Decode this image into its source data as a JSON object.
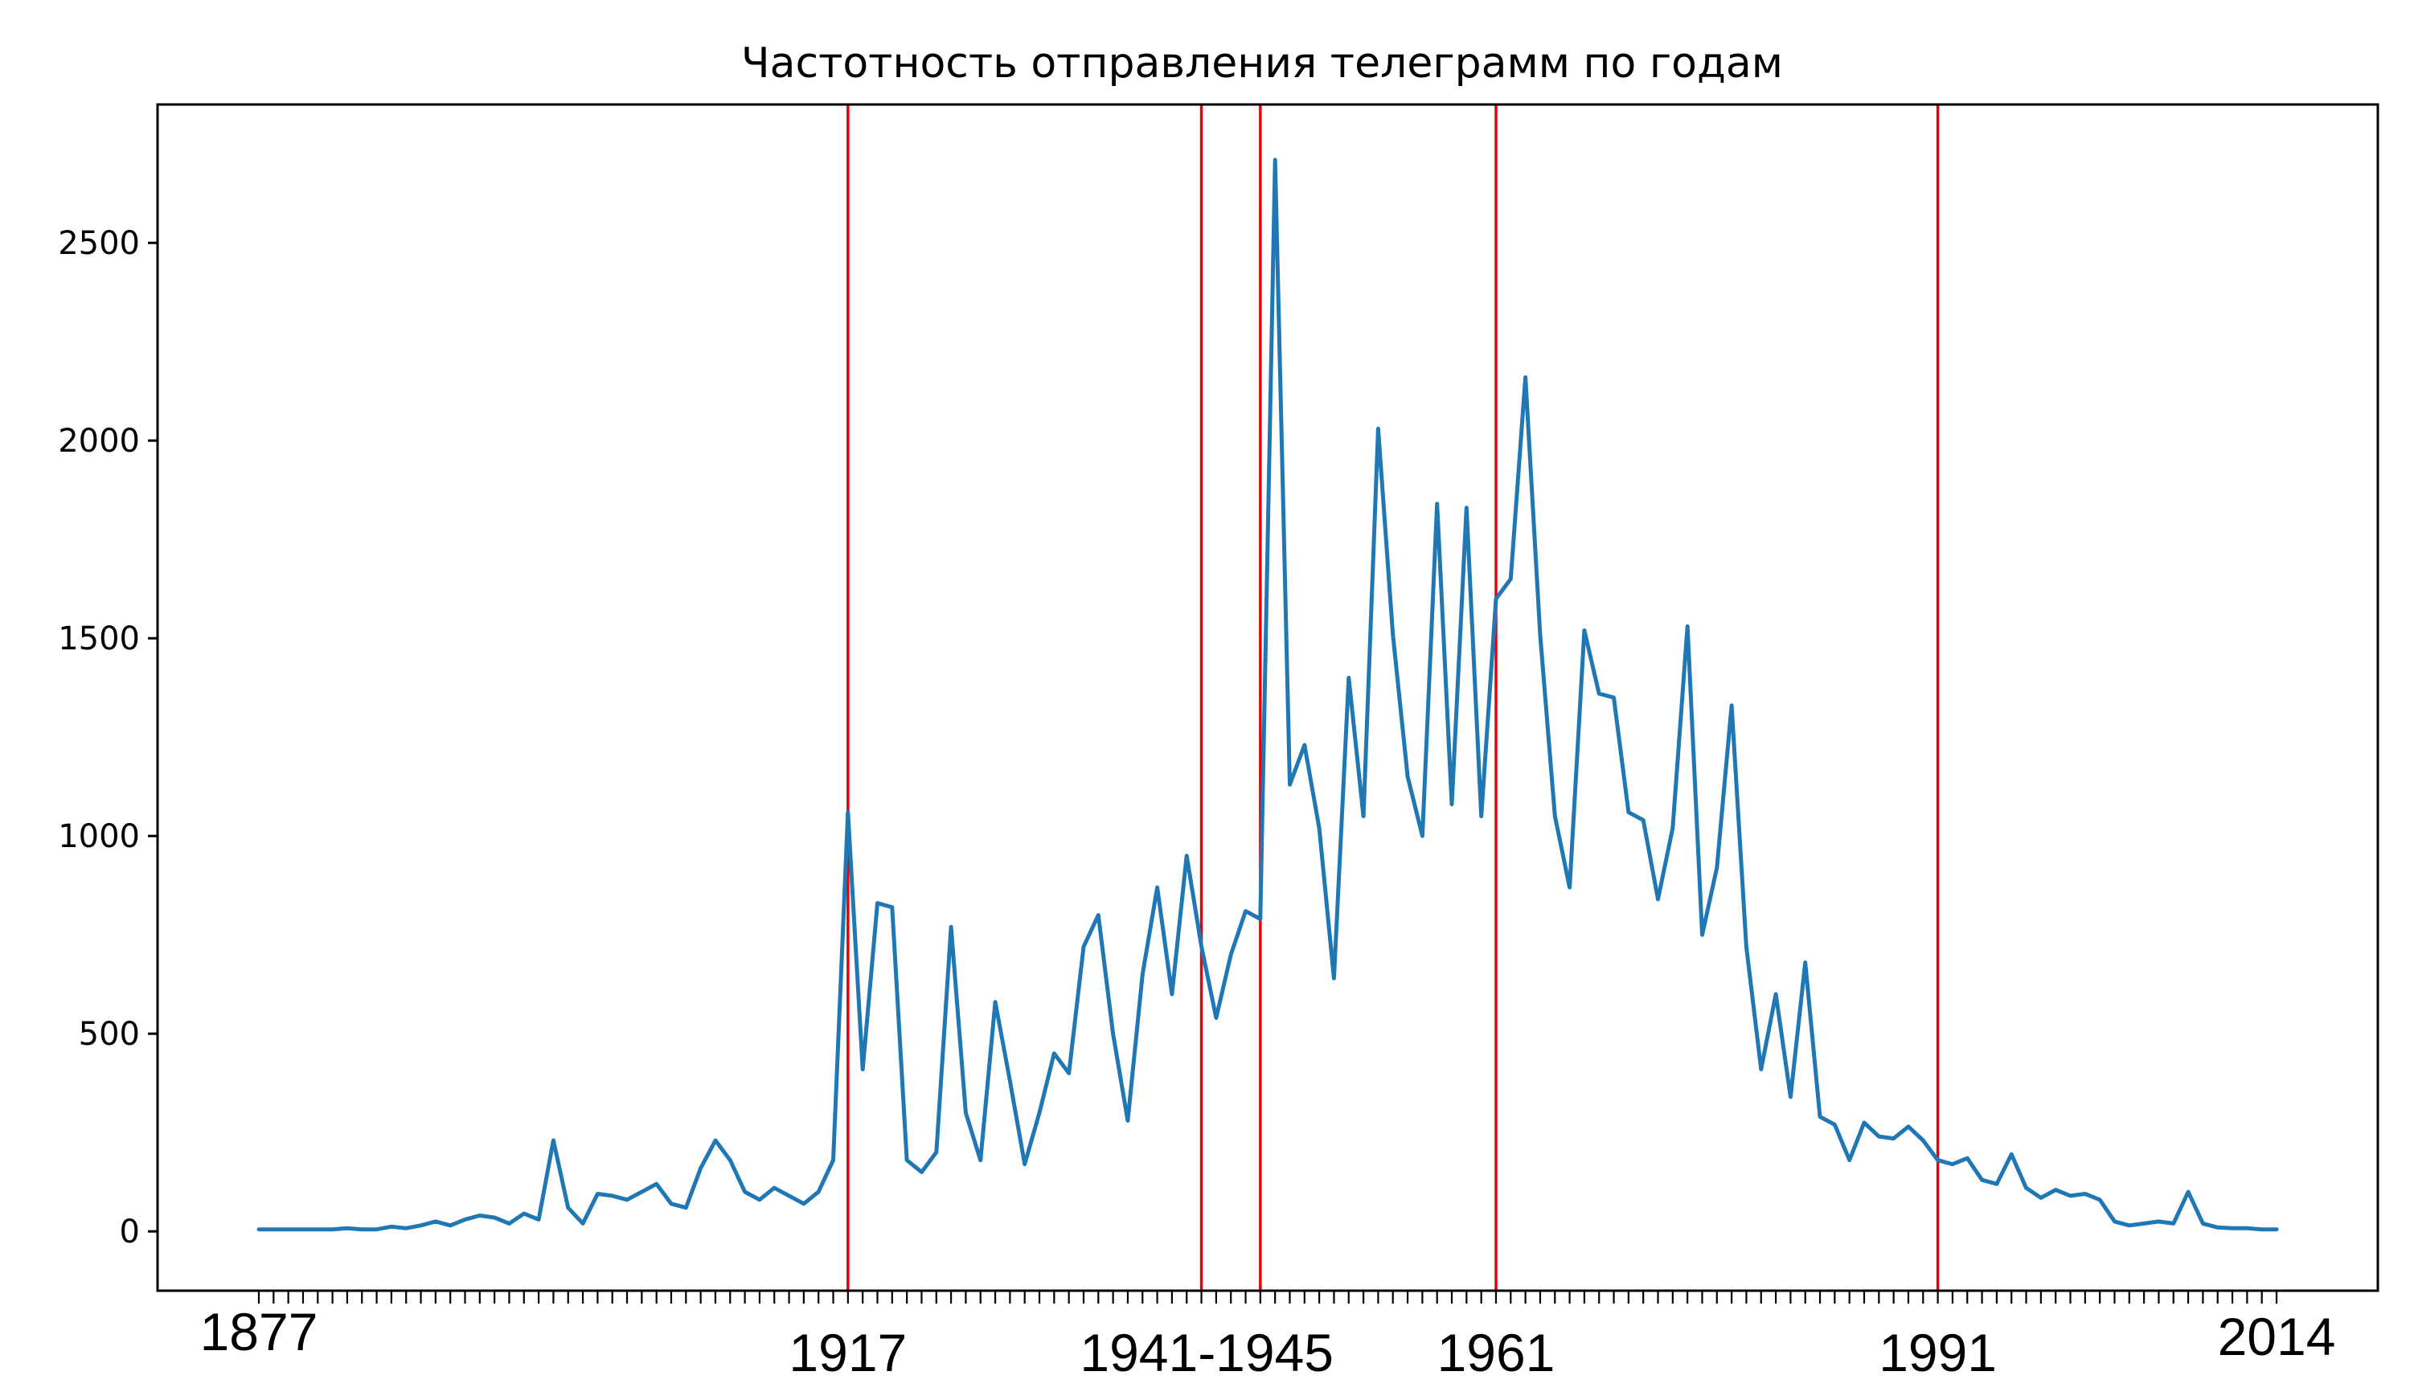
{
  "chart_data": {
    "type": "line",
    "title": "Частотность отправления телеграмм по годам",
    "xlabel": "",
    "ylabel": "",
    "xlim": [
      1877,
      2014
    ],
    "ylim": [
      -150,
      2850
    ],
    "x_tick_labels": [
      "1877",
      "1917",
      "1941-1945",
      "1961",
      "1991",
      "2014"
    ],
    "y_ticks": [
      0,
      500,
      1000,
      1500,
      2000,
      2500
    ],
    "minor_x_ticks": "one per year 1877-2014",
    "vertical_markers": [
      1917,
      1941,
      1945,
      1961,
      1991
    ],
    "marker_color": "#e8000b",
    "line_color": "#1f77b4",
    "grid": false,
    "series": [
      {
        "name": "",
        "x": [
          1877,
          1878,
          1879,
          1880,
          1881,
          1882,
          1883,
          1884,
          1885,
          1886,
          1887,
          1888,
          1889,
          1890,
          1891,
          1892,
          1893,
          1894,
          1895,
          1896,
          1897,
          1898,
          1899,
          1900,
          1901,
          1902,
          1903,
          1904,
          1905,
          1906,
          1907,
          1908,
          1909,
          1910,
          1911,
          1912,
          1913,
          1914,
          1915,
          1916,
          1917,
          1918,
          1919,
          1920,
          1921,
          1922,
          1923,
          1924,
          1925,
          1926,
          1927,
          1928,
          1929,
          1930,
          1931,
          1932,
          1933,
          1934,
          1935,
          1936,
          1937,
          1938,
          1939,
          1940,
          1941,
          1942,
          1943,
          1944,
          1945,
          1946,
          1947,
          1948,
          1949,
          1950,
          1951,
          1952,
          1953,
          1954,
          1955,
          1956,
          1957,
          1958,
          1959,
          1960,
          1961,
          1962,
          1963,
          1964,
          1965,
          1966,
          1967,
          1968,
          1969,
          1970,
          1971,
          1972,
          1973,
          1974,
          1975,
          1976,
          1977,
          1978,
          1979,
          1980,
          1981,
          1982,
          1983,
          1984,
          1985,
          1986,
          1987,
          1988,
          1989,
          1990,
          1991,
          1992,
          1993,
          1994,
          1995,
          1996,
          1997,
          1998,
          1999,
          2000,
          2001,
          2002,
          2003,
          2004,
          2005,
          2006,
          2007,
          2008,
          2009,
          2010,
          2011,
          2012,
          2013,
          2014
        ],
        "values": [
          5,
          5,
          5,
          5,
          5,
          5,
          8,
          5,
          5,
          12,
          8,
          15,
          25,
          15,
          30,
          40,
          35,
          20,
          45,
          30,
          230,
          60,
          20,
          95,
          90,
          80,
          100,
          120,
          70,
          60,
          160,
          230,
          180,
          100,
          80,
          110,
          90,
          70,
          100,
          180,
          1060,
          410,
          830,
          820,
          180,
          150,
          200,
          770,
          300,
          180,
          580,
          380,
          170,
          300,
          450,
          400,
          720,
          800,
          500,
          280,
          650,
          870,
          600,
          950,
          720,
          540,
          700,
          810,
          790,
          2710,
          1130,
          1230,
          1020,
          640,
          1400,
          1050,
          2030,
          1510,
          1150,
          1000,
          1840,
          1080,
          1830,
          1050,
          1600,
          1650,
          2160,
          1510,
          1050,
          870,
          1520,
          1360,
          1350,
          1060,
          1040,
          840,
          1020,
          1530,
          750,
          920,
          1330,
          720,
          410,
          600,
          340,
          680,
          290,
          270,
          180,
          275,
          240,
          235,
          265,
          230,
          180,
          170,
          185,
          130,
          120,
          195,
          110,
          85,
          105,
          90,
          95,
          80,
          25,
          15,
          20,
          25,
          20,
          100,
          20,
          10,
          8,
          8,
          5,
          5
        ]
      }
    ]
  }
}
